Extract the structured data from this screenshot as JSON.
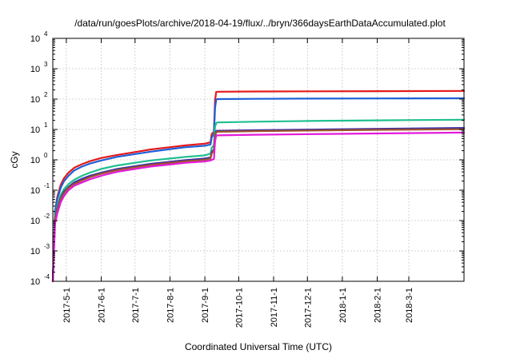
{
  "chart_data": {
    "type": "line",
    "title": "/data/run/goesPlots/archive/2018-04-19/flux/../bryn/366daysEarthDataAccumulated.plot",
    "xlabel": "Coordinated Universal Time (UTC)",
    "ylabel": "cGy",
    "xlim": [
      "2017-04-19",
      "2018-04-19"
    ],
    "ylim": [
      0.0001,
      10000
    ],
    "yscale": "log",
    "grid": true,
    "legend": "none",
    "x_ticks": [
      "2017-5-1",
      "2017-6-1",
      "2017-7-1",
      "2017-8-1",
      "2017-9-1",
      "2017-10-1",
      "2017-11-1",
      "2017-12-1",
      "2018-1-1",
      "2018-2-1",
      "2018-3-1"
    ],
    "y_ticks": [
      {
        "value": 0.0001,
        "base": "10",
        "exp": "-4"
      },
      {
        "value": 0.001,
        "base": "10",
        "exp": "-3"
      },
      {
        "value": 0.01,
        "base": "10",
        "exp": "-2"
      },
      {
        "value": 0.1,
        "base": "10",
        "exp": "-1"
      },
      {
        "value": 1,
        "base": "10",
        "exp": "0"
      },
      {
        "value": 10,
        "base": "10",
        "exp": "1"
      },
      {
        "value": 100,
        "base": "10",
        "exp": "2"
      },
      {
        "value": 1000,
        "base": "10",
        "exp": "3"
      },
      {
        "value": 10000,
        "base": "10",
        "exp": "4"
      }
    ],
    "series": [
      {
        "color": "#e41a1c",
        "x": [
          "2017-04-19",
          "2017-04-21",
          "2017-04-23",
          "2017-04-26",
          "2017-04-29",
          "2017-05-03",
          "2017-05-08",
          "2017-05-15",
          "2017-05-22",
          "2017-06-01",
          "2017-06-15",
          "2017-07-01",
          "2017-07-15",
          "2017-08-01",
          "2017-08-15",
          "2017-09-01",
          "2017-09-06",
          "2017-09-07",
          "2017-09-09",
          "2017-09-10",
          "2017-09-11",
          "2017-09-12",
          "2017-10-15",
          "2017-12-01",
          "2018-02-01",
          "2018-04-19"
        ],
        "y": [
          0.0001,
          0.02,
          0.06,
          0.15,
          0.25,
          0.38,
          0.55,
          0.72,
          0.9,
          1.15,
          1.45,
          1.8,
          2.2,
          2.6,
          3.0,
          3.4,
          3.8,
          7.0,
          8.5,
          90,
          170,
          175,
          178,
          180,
          182,
          185
        ]
      },
      {
        "color": "#1f5fd6",
        "x": [
          "2017-04-19",
          "2017-04-21",
          "2017-04-23",
          "2017-04-26",
          "2017-04-29",
          "2017-05-03",
          "2017-05-08",
          "2017-05-15",
          "2017-05-22",
          "2017-06-01",
          "2017-06-15",
          "2017-07-01",
          "2017-07-15",
          "2017-08-01",
          "2017-08-15",
          "2017-09-01",
          "2017-09-06",
          "2017-09-07",
          "2017-09-09",
          "2017-09-10",
          "2017-09-11",
          "2017-09-12",
          "2017-10-15",
          "2017-12-01",
          "2018-02-01",
          "2018-04-19"
        ],
        "y": [
          0.0001,
          0.02,
          0.05,
          0.12,
          0.2,
          0.3,
          0.45,
          0.6,
          0.75,
          0.95,
          1.25,
          1.55,
          1.85,
          2.25,
          2.6,
          2.9,
          3.2,
          5.5,
          7.0,
          50,
          95,
          100,
          102,
          104,
          105,
          106
        ]
      },
      {
        "color": "#1fbf8f",
        "x": [
          "2017-04-19",
          "2017-04-21",
          "2017-04-23",
          "2017-04-26",
          "2017-04-29",
          "2017-05-03",
          "2017-05-08",
          "2017-05-15",
          "2017-05-22",
          "2017-06-01",
          "2017-06-15",
          "2017-07-01",
          "2017-07-15",
          "2017-08-01",
          "2017-08-15",
          "2017-09-01",
          "2017-09-06",
          "2017-09-07",
          "2017-09-09",
          "2017-09-10",
          "2017-09-11",
          "2017-09-12",
          "2017-10-15",
          "2017-12-01",
          "2018-02-01",
          "2018-04-19"
        ],
        "y": [
          0.0001,
          0.015,
          0.03,
          0.07,
          0.11,
          0.16,
          0.22,
          0.3,
          0.38,
          0.5,
          0.65,
          0.8,
          0.95,
          1.1,
          1.25,
          1.4,
          1.6,
          2.5,
          3.0,
          12,
          16,
          17,
          18,
          19,
          20,
          21
        ]
      },
      {
        "color": "#3d2fa8",
        "x": [
          "2017-04-19",
          "2017-04-21",
          "2017-04-23",
          "2017-04-26",
          "2017-04-29",
          "2017-05-03",
          "2017-05-08",
          "2017-05-15",
          "2017-05-22",
          "2017-06-01",
          "2017-06-15",
          "2017-07-01",
          "2017-07-15",
          "2017-08-01",
          "2017-08-15",
          "2017-09-01",
          "2017-09-06",
          "2017-09-07",
          "2017-09-09",
          "2017-09-10",
          "2017-09-11",
          "2017-09-12",
          "2017-10-15",
          "2017-12-01",
          "2018-02-01",
          "2018-04-19"
        ],
        "y": [
          0.0001,
          0.012,
          0.025,
          0.055,
          0.09,
          0.13,
          0.18,
          0.24,
          0.3,
          0.38,
          0.5,
          0.62,
          0.74,
          0.86,
          0.98,
          1.1,
          1.2,
          1.8,
          2.2,
          6,
          8.8,
          9.0,
          9.4,
          9.9,
          10.5,
          11.2
        ]
      },
      {
        "color": "#a0522d",
        "x": [
          "2017-04-19",
          "2017-04-21",
          "2017-04-23",
          "2017-04-26",
          "2017-04-29",
          "2017-05-03",
          "2017-05-08",
          "2017-05-15",
          "2017-05-22",
          "2017-06-01",
          "2017-06-15",
          "2017-07-01",
          "2017-07-15",
          "2017-08-01",
          "2017-08-15",
          "2017-09-01",
          "2017-09-06",
          "2017-09-07",
          "2017-09-09",
          "2017-09-10",
          "2017-09-11",
          "2017-09-12",
          "2017-10-15",
          "2017-12-01",
          "2018-02-01",
          "2018-04-19"
        ],
        "y": [
          0.0001,
          0.011,
          0.022,
          0.05,
          0.08,
          0.12,
          0.16,
          0.21,
          0.27,
          0.35,
          0.46,
          0.57,
          0.68,
          0.79,
          0.9,
          1.0,
          1.1,
          1.6,
          2.0,
          5.5,
          8.0,
          8.4,
          8.8,
          9.2,
          9.7,
          10.2
        ]
      },
      {
        "color": "#e41ad9",
        "x": [
          "2017-04-19",
          "2017-04-21",
          "2017-04-23",
          "2017-04-26",
          "2017-04-29",
          "2017-05-03",
          "2017-05-08",
          "2017-05-15",
          "2017-05-22",
          "2017-06-01",
          "2017-06-15",
          "2017-07-01",
          "2017-07-15",
          "2017-08-01",
          "2017-08-15",
          "2017-09-01",
          "2017-09-06",
          "2017-09-07",
          "2017-09-09",
          "2017-09-10",
          "2017-09-11",
          "2017-09-12",
          "2017-10-15",
          "2017-12-01",
          "2018-02-01",
          "2018-04-19"
        ],
        "y": [
          0.0001,
          0.008,
          0.017,
          0.04,
          0.065,
          0.1,
          0.14,
          0.18,
          0.23,
          0.3,
          0.4,
          0.5,
          0.6,
          0.7,
          0.8,
          0.88,
          0.95,
          1.0,
          1.05,
          4.0,
          6.2,
          6.4,
          6.7,
          7.0,
          7.4,
          7.9
        ]
      }
    ]
  }
}
